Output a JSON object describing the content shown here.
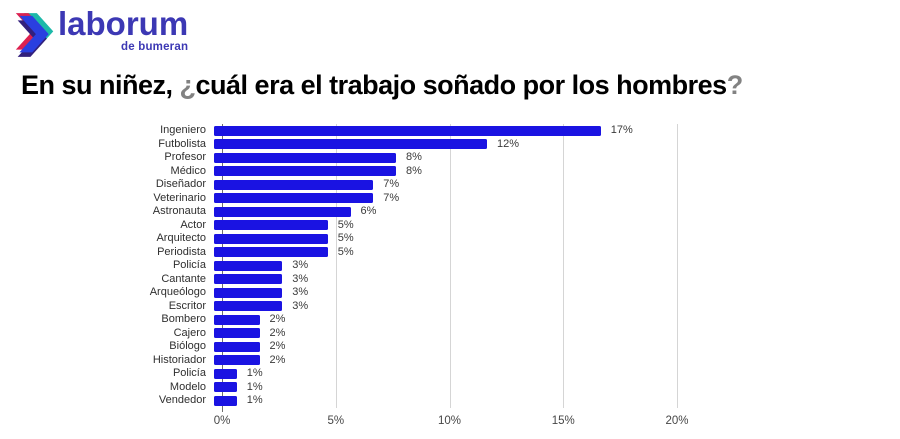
{
  "logo": {
    "brand": "laborum",
    "tagline": "de bumeran",
    "brand_color": "#3c38b4",
    "icon_colors": {
      "teal": "#1db9a9",
      "red": "#dd2150",
      "blue": "#2a3fe0",
      "dark": "#33207c"
    }
  },
  "title": {
    "full": "En su niñez, ¿cuál era el trabajo soñado por los hombres?",
    "segments": [
      {
        "text": "En su niñez, "
      },
      {
        "text": "¿"
      },
      {
        "text": "cuál era el trabajo soñado por los hombres"
      },
      {
        "text": "?"
      }
    ]
  },
  "chart_data": {
    "type": "bar",
    "orientation": "horizontal",
    "title": "En su niñez, ¿cuál era el trabajo soñado por los hombres?",
    "categories": [
      "Ingeniero",
      "Futbolista",
      "Profesor",
      "Médico",
      "Diseñador",
      "Veterinario",
      "Astronauta",
      "Actor",
      "Arquitecto",
      "Periodista",
      "Policía",
      "Cantante",
      "Arqueólogo",
      "Escritor",
      "Bombero",
      "Cajero",
      "Biólogo",
      "Historiador",
      "Policía",
      "Modelo",
      "Vendedor"
    ],
    "values": [
      17,
      12,
      8,
      8,
      7,
      7,
      6,
      5,
      5,
      5,
      3,
      3,
      3,
      3,
      2,
      2,
      2,
      2,
      1,
      1,
      1
    ],
    "value_labels": [
      "17%",
      "12%",
      "8%",
      "8%",
      "7%",
      "7%",
      "6%",
      "5%",
      "5%",
      "5%",
      "3%",
      "3%",
      "3%",
      "3%",
      "2%",
      "2%",
      "2%",
      "2%",
      "1%",
      "1%",
      "1%"
    ],
    "unit": "%",
    "bar_color": "#1a13e2",
    "xlabel": "",
    "ylabel": "",
    "xlim": [
      0,
      20.7
    ],
    "xticks": [
      {
        "value": 0,
        "label": "0%"
      },
      {
        "value": 5,
        "label": "5%"
      },
      {
        "value": 10,
        "label": "10%"
      },
      {
        "value": 15,
        "label": "15%"
      },
      {
        "value": 20,
        "label": "20%"
      }
    ],
    "grid": true,
    "legend": "none"
  }
}
